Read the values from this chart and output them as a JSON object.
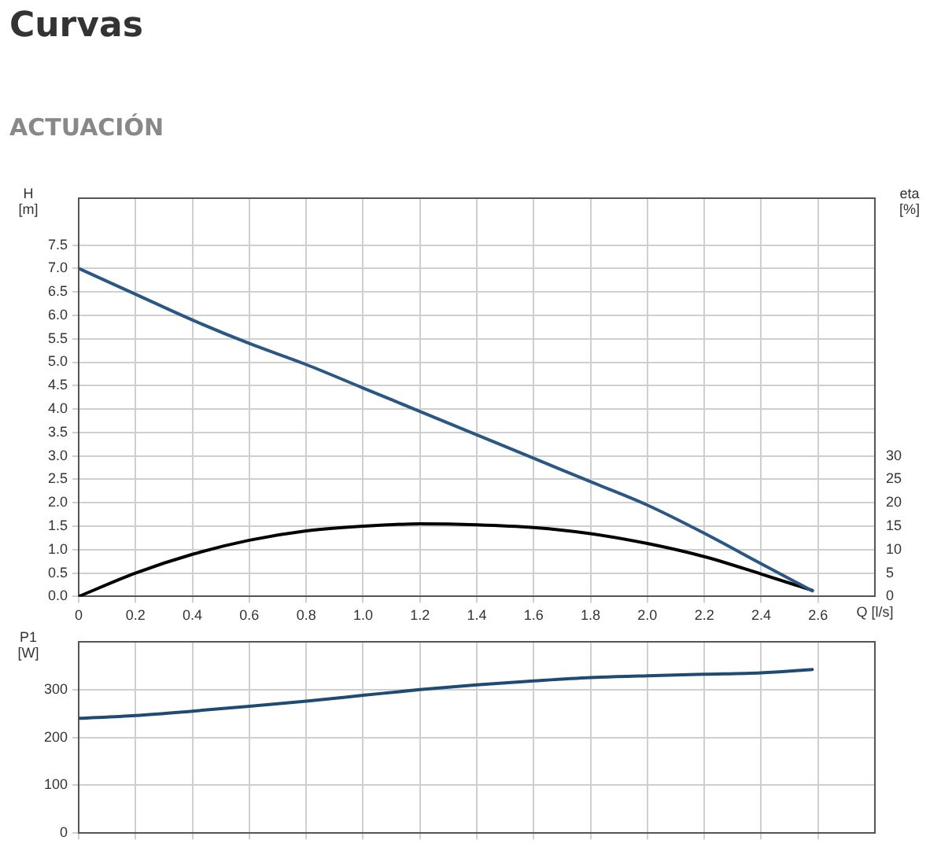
{
  "chart_data": [
    {
      "type": "line",
      "title": "Curvas",
      "subtitle": "ACTUACIÓN",
      "xlabel": "Q [l/s]",
      "ylabel": "H\n[m]",
      "y2label": "eta\n[%]",
      "xlim": [
        0,
        2.8
      ],
      "xticks": [
        0,
        0.2,
        0.4,
        0.6,
        0.8,
        {
          "value": 1,
          "label": "1.0"
        },
        1.2,
        1.4,
        1.6,
        1.8,
        {
          "value": 2,
          "label": "2.0"
        },
        2.2,
        2.4,
        2.6
      ],
      "ylim": [
        0,
        8.5
      ],
      "yticks": [
        {
          "value": 0,
          "label": "0.0"
        },
        0.5,
        {
          "value": 1,
          "label": "1.0"
        },
        1.5,
        {
          "value": 2,
          "label": "2.0"
        },
        2.5,
        {
          "value": 3,
          "label": "3.0"
        },
        3.5,
        {
          "value": 4,
          "label": "4.0"
        },
        4.5,
        {
          "value": 5,
          "label": "5.0"
        },
        5.5,
        {
          "value": 6,
          "label": "6.0"
        },
        6.5,
        {
          "value": 7,
          "label": "7.0"
        },
        7.5
      ],
      "y2lim": [
        0,
        85
      ],
      "y2ticks": [
        0,
        5,
        10,
        15,
        20,
        25,
        30
      ],
      "grid": true,
      "legend": false,
      "marker": "none",
      "line_style": "solid",
      "series": [
        {
          "type": "line",
          "color": "#2b5782",
          "x": [
            0,
            0.2,
            0.4,
            0.6,
            0.8,
            1.0,
            1.2,
            1.4,
            1.6,
            1.8,
            2.0,
            2.2,
            2.4,
            2.58
          ],
          "values": [
            7.0,
            6.45,
            5.9,
            5.4,
            4.95,
            4.45,
            3.95,
            3.45,
            2.95,
            2.45,
            1.95,
            1.35,
            0.7,
            0.12
          ]
        },
        {
          "type": "line",
          "axis": "y2",
          "color": "#000000",
          "x": [
            0,
            0.2,
            0.4,
            0.6,
            0.8,
            1.0,
            1.2,
            1.4,
            1.6,
            1.8,
            2.0,
            2.2,
            2.4,
            2.58
          ],
          "values": [
            0,
            5,
            9,
            12,
            14,
            15,
            15.5,
            15.3,
            14.7,
            13.4,
            11.3,
            8.5,
            4.8,
            1.3
          ]
        }
      ]
    },
    {
      "type": "line",
      "ylabel": "P1\n[W]",
      "xlim": [
        0,
        2.8
      ],
      "xticks": [
        0,
        0.2,
        0.4,
        0.6,
        0.8,
        1,
        1.2,
        1.4,
        1.6,
        1.8,
        2,
        2.2,
        2.4,
        2.6
      ],
      "ylim": [
        0,
        400
      ],
      "yticks": [
        0,
        100,
        200,
        300
      ],
      "tick_labels": "y",
      "grid": true,
      "legend": false,
      "marker": "none",
      "line_style": "solid",
      "series": [
        {
          "type": "line",
          "color": "#1f4a72",
          "x": [
            0,
            0.2,
            0.4,
            0.6,
            0.8,
            1.0,
            1.2,
            1.4,
            1.6,
            1.8,
            2.0,
            2.2,
            2.4,
            2.58
          ],
          "values": [
            240,
            246,
            255,
            265,
            276,
            288,
            300,
            310,
            318,
            325,
            329,
            332,
            335,
            342
          ]
        }
      ]
    }
  ]
}
